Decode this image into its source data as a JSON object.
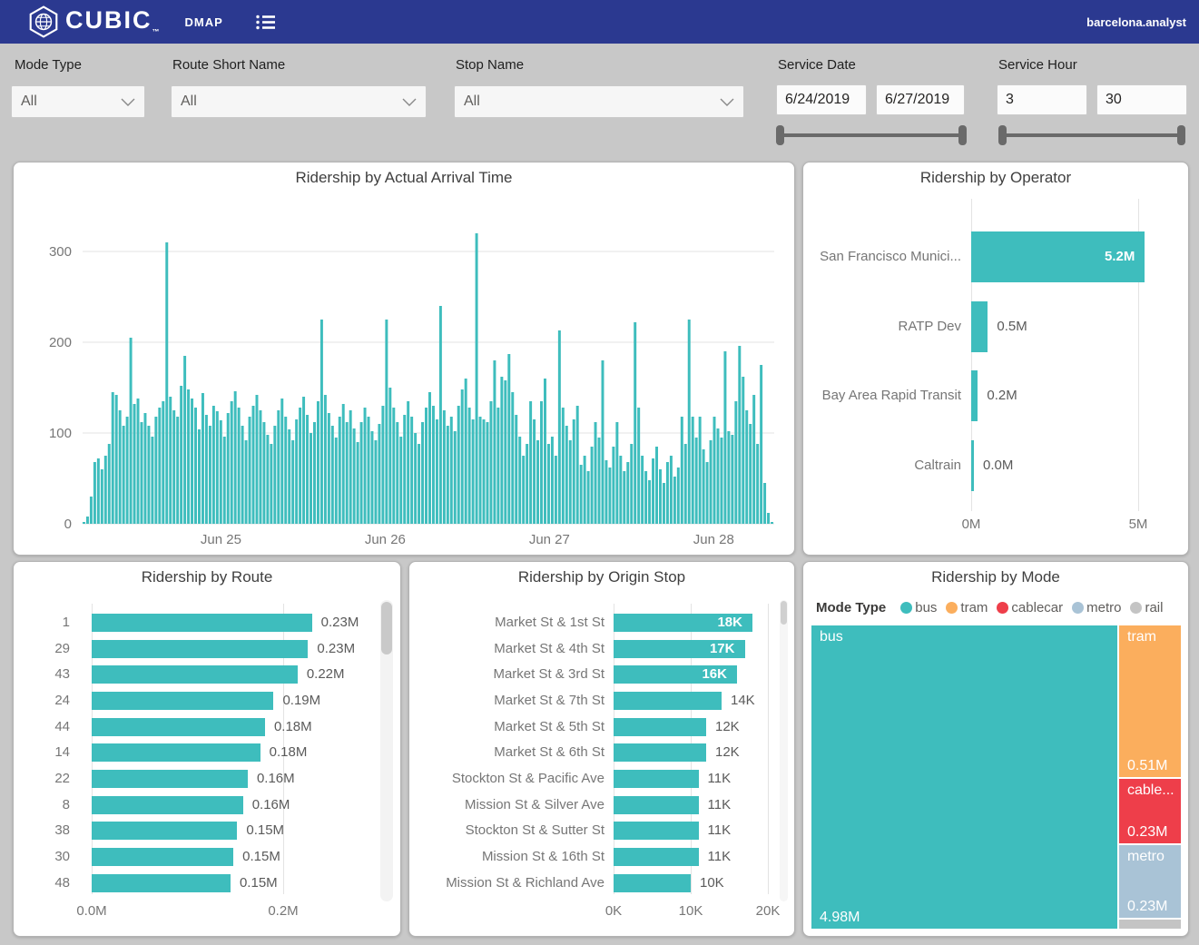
{
  "navbar": {
    "brand": "CUBIC",
    "brand_tm": "™",
    "app_name": "DMAP",
    "user": "barcelona.analyst"
  },
  "filters": {
    "mode_type": {
      "label": "Mode Type",
      "value": "All"
    },
    "route_short_name": {
      "label": "Route Short Name",
      "value": "All"
    },
    "stop_name": {
      "label": "Stop Name",
      "value": "All"
    },
    "service_date": {
      "label": "Service Date",
      "start": "6/24/2019",
      "end": "6/27/2019"
    },
    "service_hour": {
      "label": "Service Hour",
      "start": "3",
      "end": "30"
    }
  },
  "colors": {
    "teal": "#3ebdbd",
    "orange": "#fbae5d",
    "red": "#ee3e4a",
    "steel": "#a9c3d6",
    "gray": "#c4c4c4",
    "navbar": "#2b3990"
  },
  "chart_data": [
    {
      "id": "arrival",
      "type": "area",
      "title": "Ridership by Actual Arrival Time",
      "y_ticks": [
        0,
        100,
        200,
        300
      ],
      "ylim": [
        0,
        330
      ],
      "x_tick_labels": [
        "Jun 25",
        "Jun 26",
        "Jun 27",
        "Jun 28"
      ],
      "grid": true,
      "values": [
        2,
        8,
        30,
        68,
        72,
        60,
        75,
        88,
        145,
        142,
        125,
        108,
        118,
        205,
        132,
        138,
        112,
        122,
        108,
        96,
        118,
        128,
        135,
        310,
        140,
        125,
        118,
        152,
        185,
        148,
        138,
        128,
        104,
        144,
        120,
        108,
        130,
        124,
        114,
        96,
        122,
        135,
        146,
        128,
        108,
        92,
        118,
        130,
        142,
        125,
        112,
        98,
        88,
        108,
        125,
        138,
        118,
        104,
        92,
        115,
        128,
        140,
        120,
        100,
        112,
        135,
        225,
        142,
        122,
        108,
        95,
        118,
        132,
        112,
        125,
        105,
        90,
        112,
        128,
        118,
        102,
        92,
        110,
        130,
        225,
        150,
        128,
        112,
        96,
        120,
        135,
        118,
        100,
        88,
        112,
        128,
        145,
        130,
        115,
        240,
        125,
        108,
        118,
        102,
        130,
        148,
        160,
        128,
        115,
        320,
        118,
        115,
        112,
        135,
        180,
        128,
        162,
        158,
        187,
        145,
        120,
        96,
        75,
        88,
        135,
        115,
        92,
        135,
        160,
        88,
        96,
        75,
        213,
        128,
        108,
        92,
        115,
        130,
        65,
        75,
        58,
        85,
        112,
        95,
        180,
        70,
        62,
        85,
        112,
        75,
        58,
        68,
        88,
        222,
        128,
        75,
        58,
        48,
        72,
        85,
        60,
        45,
        68,
        75,
        52,
        62,
        118,
        88,
        225,
        118,
        95,
        118,
        82,
        68,
        92,
        118,
        105,
        95,
        190,
        102,
        98,
        135,
        196,
        162,
        125,
        110,
        142,
        88,
        175,
        45,
        12,
        2
      ]
    },
    {
      "id": "operator",
      "type": "bar",
      "orientation": "horizontal",
      "title": "Ridership by Operator",
      "categories": [
        "San Francisco Munici...",
        "RATP Dev",
        "Bay Area Rapid Transit",
        "Caltrain"
      ],
      "values": [
        5.2,
        0.5,
        0.2,
        0.04
      ],
      "value_labels": [
        "5.2M",
        "0.5M",
        "0.2M",
        "0.0M"
      ],
      "x_tick_labels": [
        "0M",
        "5M"
      ],
      "xlim": [
        0,
        5.2
      ]
    },
    {
      "id": "route",
      "type": "bar",
      "orientation": "horizontal",
      "title": "Ridership by Route",
      "categories": [
        "1",
        "29",
        "43",
        "24",
        "44",
        "14",
        "22",
        "8",
        "38",
        "30",
        "48"
      ],
      "values": [
        0.23,
        0.226,
        0.215,
        0.19,
        0.181,
        0.176,
        0.163,
        0.158,
        0.152,
        0.148,
        0.145
      ],
      "value_labels": [
        "0.23M",
        "0.23M",
        "0.22M",
        "0.19M",
        "0.18M",
        "0.18M",
        "0.16M",
        "0.16M",
        "0.15M",
        "0.15M",
        "0.15M"
      ],
      "x_tick_labels": [
        "0.0M",
        "0.2M"
      ],
      "xlim": [
        0,
        0.32
      ]
    },
    {
      "id": "origin",
      "type": "bar",
      "orientation": "horizontal",
      "title": "Ridership by Origin Stop",
      "categories": [
        "Market St & 1st St",
        "Market St & 4th St",
        "Market St & 3rd St",
        "Market St & 7th St",
        "Market St & 5th St",
        "Market St & 6th St",
        "Stockton St & Pacific Ave",
        "Mission St & Silver Ave",
        "Stockton St & Sutter St",
        "Mission St & 16th St",
        "Mission St & Richland Ave"
      ],
      "values": [
        18,
        17,
        16,
        14,
        12,
        12,
        11,
        11,
        11,
        11,
        10
      ],
      "value_labels": [
        "18K",
        "17K",
        "16K",
        "14K",
        "12K",
        "12K",
        "11K",
        "11K",
        "11K",
        "11K",
        "10K"
      ],
      "x_tick_labels": [
        "0K",
        "10K",
        "20K"
      ],
      "xlim": [
        0,
        20
      ]
    },
    {
      "id": "mode",
      "type": "treemap",
      "title": "Ridership by Mode",
      "legend_title": "Mode Type",
      "legend": [
        {
          "label": "bus",
          "color": "#3ebdbd"
        },
        {
          "label": "tram",
          "color": "#fbae5d"
        },
        {
          "label": "cablecar",
          "color": "#ee3e4a"
        },
        {
          "label": "metro",
          "color": "#a9c3d6"
        },
        {
          "label": "rail",
          "color": "#c4c4c4"
        }
      ],
      "blocks": [
        {
          "name": "bus",
          "label": "bus",
          "value": 4.98,
          "value_label": "4.98M",
          "color": "#3ebdbd"
        },
        {
          "name": "tram",
          "label": "tram",
          "value": 0.51,
          "value_label": "0.51M",
          "color": "#fbae5d"
        },
        {
          "name": "cablecar",
          "label": "cable...",
          "value": 0.23,
          "value_label": "0.23M",
          "color": "#ee3e4a"
        },
        {
          "name": "metro",
          "label": "metro",
          "value": 0.23,
          "value_label": "0.23M",
          "color": "#a9c3d6"
        },
        {
          "name": "rail",
          "label": "",
          "value": 0.02,
          "value_label": "",
          "color": "#c4c4c4"
        }
      ]
    }
  ]
}
